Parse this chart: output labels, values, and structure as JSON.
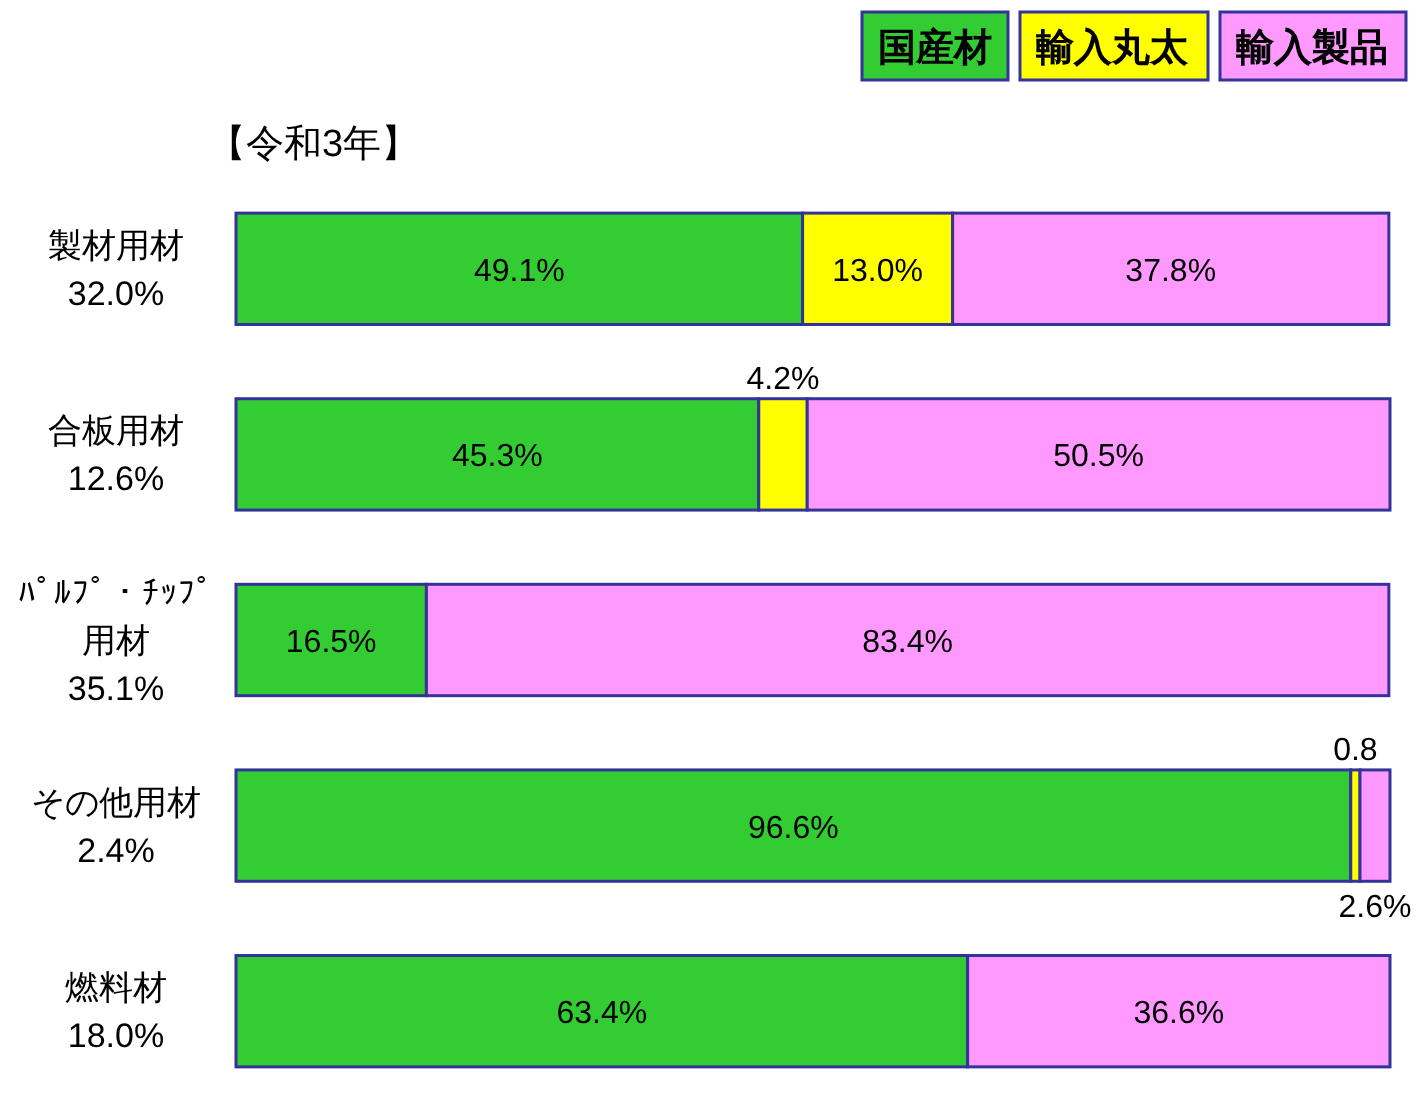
{
  "chart_data": {
    "type": "bar",
    "orientation": "horizontal",
    "stacked": true,
    "legend": "top right",
    "tick_labels": false,
    "xlim": [
      0,
      100
    ],
    "categories": [
      "製材用材\n32.0%",
      "合板用材\n12.6%",
      "ﾊﾟﾙﾌﾟ・ﾁｯﾌﾟ用材\n35.1%",
      "その他用材\n2.4%",
      "燃料材\n18.0%"
    ],
    "annotations": [
      "【令和3年】"
    ],
    "series": [
      {
        "name": "国産材",
        "color": "#33cc33",
        "values": [
          49.1,
          45.3,
          16.5,
          96.6,
          63.4
        ],
        "value_labels": [
          "49.1%",
          "45.3%",
          "16.5%",
          "96.6%",
          "63.4%"
        ]
      },
      {
        "name": "輸入丸太",
        "color": "#ffff00",
        "values": [
          13.0,
          4.2,
          null,
          0.8,
          null
        ],
        "value_labels": [
          "13.0%",
          "4.2%",
          null,
          "0.8",
          null
        ]
      },
      {
        "name": "輸入製品",
        "color": "#ff99ff",
        "values": [
          37.8,
          50.5,
          83.4,
          2.6,
          36.6
        ],
        "value_labels": [
          "37.8%",
          "50.5%",
          "83.4%",
          "2.6%",
          "36.6%"
        ]
      }
    ]
  }
}
